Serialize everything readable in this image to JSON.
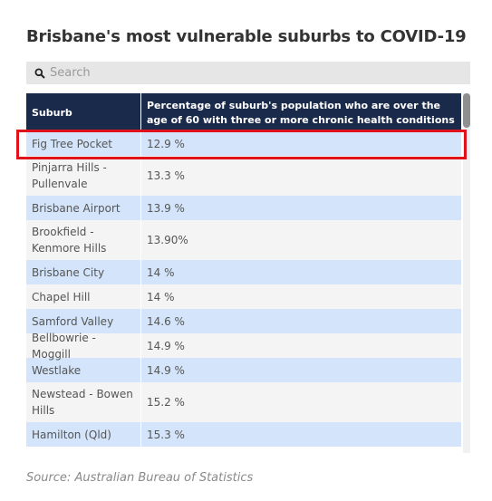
{
  "title": "Brisbane's most vulnerable suburbs to COVID-19",
  "search": {
    "placeholder": "Search",
    "icon": "search-icon"
  },
  "table": {
    "headers": {
      "suburb": "Suburb",
      "percentage": "Percentage of suburb's population who are over the age of 60 with three or more chronic health conditions"
    },
    "rows": [
      {
        "suburb": "Fig Tree Pocket",
        "percentage": "12.9 %"
      },
      {
        "suburb": "Pinjarra Hills - Pullenvale",
        "percentage": "13.3 %"
      },
      {
        "suburb": "Brisbane Airport",
        "percentage": "13.9 %"
      },
      {
        "suburb": "Brookfield - Kenmore Hills",
        "percentage": "13.90%"
      },
      {
        "suburb": "Brisbane City",
        "percentage": "14 %"
      },
      {
        "suburb": "Chapel Hill",
        "percentage": "14 %"
      },
      {
        "suburb": "Samford Valley",
        "percentage": "14.6 %"
      },
      {
        "suburb": "Bellbowrie - Moggill",
        "percentage": "14.9 %"
      },
      {
        "suburb": "Westlake",
        "percentage": "14.9 %"
      },
      {
        "suburb": "Newstead - Bowen Hills",
        "percentage": "15.2 %"
      },
      {
        "suburb": "Hamilton (Qld)",
        "percentage": "15.3 %"
      }
    ]
  },
  "source": "Source: Australian Bureau of Statistics",
  "colors": {
    "header_bg": "#1a2a4a",
    "row_odd": "#d4e5fb",
    "row_even": "#f4f4f4",
    "highlight": "#e0121c"
  }
}
